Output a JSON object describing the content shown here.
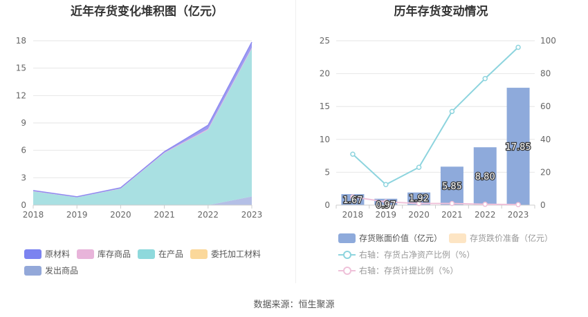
{
  "left_chart": {
    "title": "近年存货变化堆积图（亿元）",
    "legend": [
      {
        "label": "原材料",
        "color": "#7b83f0"
      },
      {
        "label": "库存商品",
        "color": "#e8b4da"
      },
      {
        "label": "在产品",
        "color": "#8ed9dc"
      },
      {
        "label": "委托加工材料",
        "color": "#fbd89a"
      },
      {
        "label": "发出商品",
        "color": "#93a8d9"
      }
    ]
  },
  "right_chart": {
    "title": "历年存货变动情况",
    "legend": [
      {
        "label": "存货账面价值（亿元）",
        "color": "#8eaadb",
        "muted": false
      },
      {
        "label": "存货跌价准备（亿元）",
        "color": "#fde5c4",
        "muted": true
      },
      {
        "label": "右轴：存货占净资产比例（%）",
        "color": "#8dd4de",
        "muted": true
      },
      {
        "label": "右轴：存货计提比例（%）",
        "color": "#efc1d9",
        "muted": true
      }
    ]
  },
  "chart_data": [
    {
      "type": "area",
      "stacked": true,
      "title": "近年存货变化堆积图（亿元）",
      "categories": [
        "2018",
        "2019",
        "2020",
        "2021",
        "2022",
        "2023"
      ],
      "ylim": [
        0,
        18
      ],
      "yticks": [
        0,
        3,
        6,
        9,
        12,
        15,
        18
      ],
      "grid": true,
      "legend_position": "bottom",
      "series": [
        {
          "name": "发出商品",
          "color": "#b4bfe6",
          "values": [
            0,
            0,
            0,
            0,
            0,
            0.95
          ]
        },
        {
          "name": "委托加工材料",
          "color": "#fbd89a",
          "values": [
            0,
            0,
            0,
            0,
            0,
            0
          ]
        },
        {
          "name": "在产品",
          "color": "#a9e0e2",
          "values": [
            1.5,
            0.85,
            1.8,
            5.7,
            8.25,
            16.2
          ]
        },
        {
          "name": "库存商品",
          "color": "#e8b4da",
          "values": [
            0.05,
            0.02,
            0.03,
            0.05,
            0.1,
            0.1
          ]
        },
        {
          "name": "原材料",
          "color": "#9d9cf2",
          "values": [
            0.05,
            0.05,
            0.07,
            0.1,
            0.4,
            0.6
          ]
        }
      ]
    },
    {
      "type": "bar",
      "title": "历年存货变动情况",
      "categories": [
        "2018",
        "2019",
        "2020",
        "2021",
        "2022",
        "2023"
      ],
      "ylim": [
        0,
        25
      ],
      "yticks": [
        0,
        5,
        10,
        15,
        20,
        25
      ],
      "y2lim": [
        0,
        100
      ],
      "y2ticks": [
        0,
        20,
        40,
        60,
        80,
        100
      ],
      "grid": true,
      "legend_position": "bottom",
      "series": [
        {
          "name": "存货账面价值（亿元）",
          "axis": "left",
          "kind": "bar",
          "color": "#8eaadb",
          "values": [
            1.67,
            0.97,
            1.92,
            5.85,
            8.8,
            17.85
          ],
          "labels": [
            "1.67",
            "0.97",
            "1.92",
            "5.85",
            "8.80",
            "17.85"
          ]
        },
        {
          "name": "存货跌价准备（亿元）",
          "axis": "left",
          "kind": "bar",
          "color": "#fde5c4",
          "values": [
            0,
            0,
            0,
            0,
            0,
            0
          ]
        },
        {
          "name": "右轴：存货占净资产比例（%）",
          "axis": "right",
          "kind": "line",
          "color": "#8dd4de",
          "values": [
            31,
            12.5,
            23,
            57,
            77,
            96
          ]
        },
        {
          "name": "右轴：存货计提比例（%）",
          "axis": "right",
          "kind": "line",
          "color": "#efc1d9",
          "values": [
            5,
            2,
            1,
            1,
            0.5,
            0.3
          ]
        }
      ]
    }
  ],
  "source": "数据来源：恒生聚源"
}
